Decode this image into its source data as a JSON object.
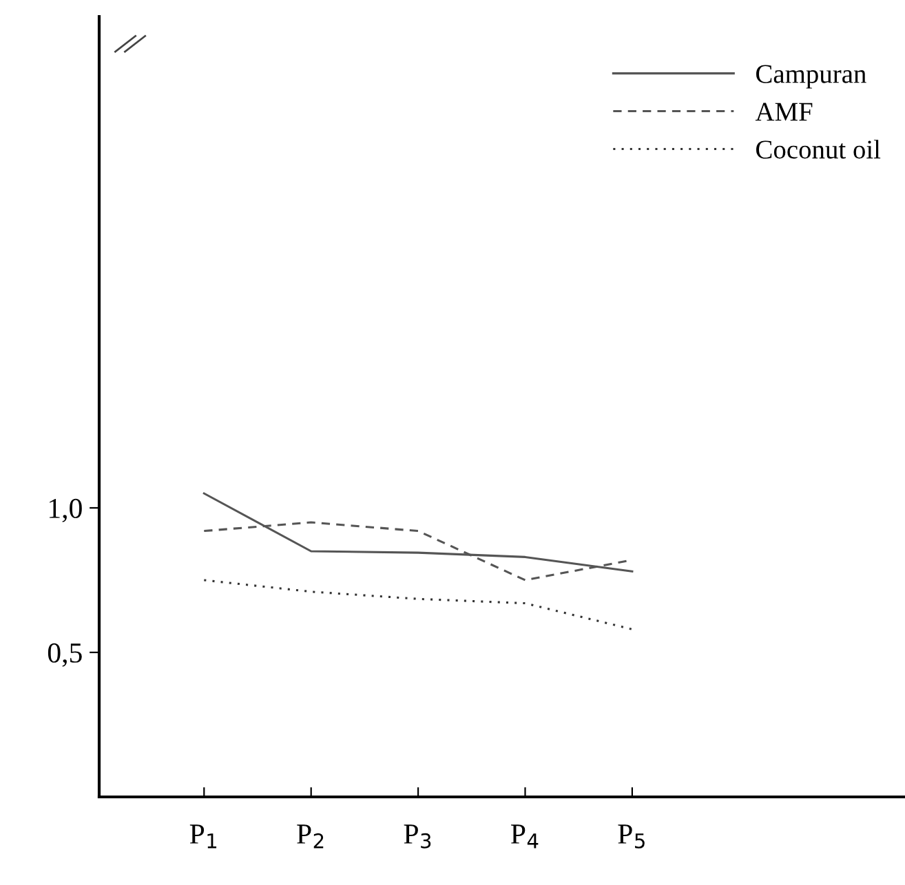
{
  "chart_data": {
    "type": "line",
    "categories": [
      "P$_{1}$",
      "P$_{2}$",
      "P$_{3}$",
      "P$_{4}$",
      "P$_{5}$"
    ],
    "series": [
      {
        "name": "Campuran",
        "color": "#555555",
        "line_style": "solid",
        "values": [
          1.05,
          0.85,
          0.845,
          0.83,
          0.78
        ]
      },
      {
        "name": "AMF",
        "color": "#555555",
        "line_style": "dashed",
        "values": [
          0.92,
          0.95,
          0.92,
          0.75,
          0.82
        ]
      },
      {
        "name": "Coconut oil",
        "color": "#333333",
        "line_style": "dotted",
        "values": [
          0.75,
          0.71,
          0.685,
          0.67,
          0.58
        ]
      }
    ],
    "ylim": [
      0,
      2.7
    ],
    "yticks": [
      {
        "value": 0.5,
        "label": "0,5"
      },
      {
        "value": 1.0,
        "label": "1,0"
      }
    ],
    "grid": false,
    "legend": "top right",
    "marker": "none"
  }
}
